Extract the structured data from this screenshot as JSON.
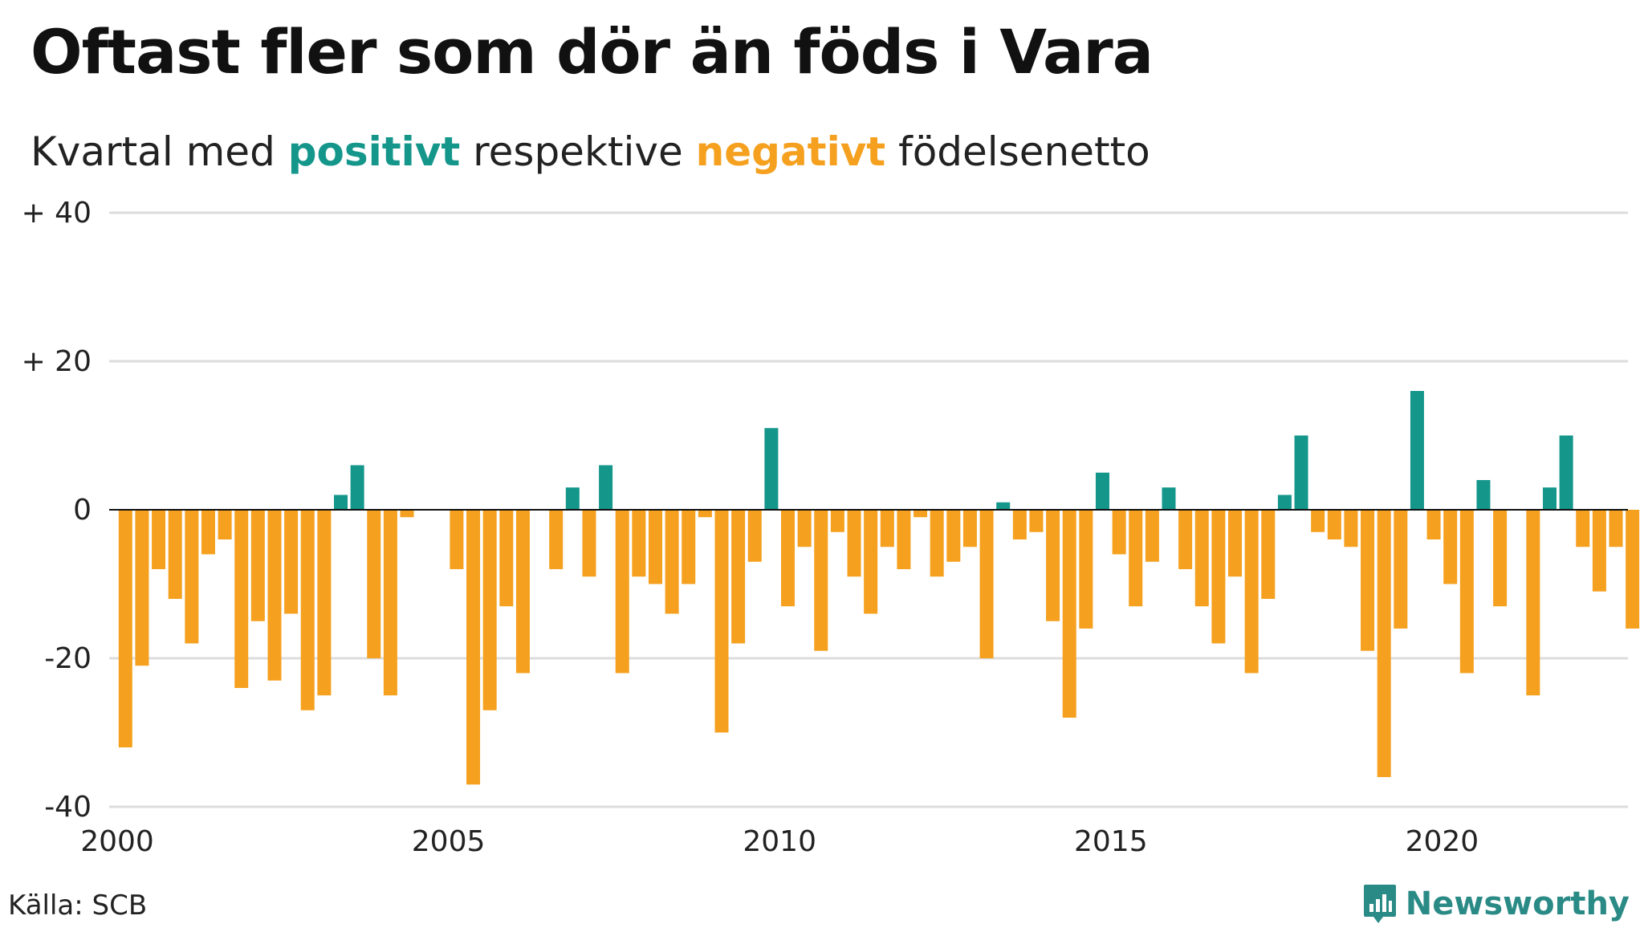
{
  "header": {
    "title": "Oftast fler som dör än föds i Vara",
    "subtitle_pre": "Kvartal med ",
    "subtitle_pos": "positivt",
    "subtitle_mid": " respektive ",
    "subtitle_neg": "negativt",
    "subtitle_post": " födelsenetto"
  },
  "footer": {
    "source": "Källa: SCB",
    "brand": "Newsworthy",
    "brand_icon": "newsworthy-logo-icon"
  },
  "colors": {
    "positive": "#14968b",
    "negative": "#f5a01e",
    "grid": "#dcdcdc",
    "zero_line": "#111111",
    "brand": "#2a8a86"
  },
  "chart_data": {
    "type": "bar",
    "x_start": "2000 Q1",
    "x_ticks": [
      2000,
      2005,
      2010,
      2015,
      2020
    ],
    "y_ticks": [
      {
        "value": 40,
        "label": "+ 40"
      },
      {
        "value": 20,
        "label": "+ 20"
      },
      {
        "value": 0,
        "label": "0"
      },
      {
        "value": -20,
        "label": "-20"
      },
      {
        "value": -40,
        "label": "-40"
      }
    ],
    "ylim": [
      -40,
      40
    ],
    "grid": true,
    "values": [
      -32,
      -21,
      -8,
      -12,
      -18,
      -6,
      -4,
      -24,
      -15,
      -23,
      -14,
      -27,
      -25,
      2,
      6,
      -20,
      -25,
      -1,
      0,
      0,
      -8,
      -37,
      -27,
      -13,
      -22,
      0,
      -8,
      3,
      -9,
      6,
      -22,
      -9,
      -10,
      -14,
      -10,
      -1,
      -30,
      -18,
      -7,
      11,
      -13,
      -5,
      -19,
      -3,
      -9,
      -14,
      -5,
      -8,
      -1,
      -9,
      -7,
      -5,
      -20,
      1,
      -4,
      -3,
      -15,
      -28,
      -16,
      5,
      -6,
      -13,
      -7,
      3,
      -8,
      -13,
      -18,
      -9,
      -22,
      -12,
      2,
      10,
      -3,
      -4,
      -5,
      -19,
      -36,
      -16,
      16,
      -4,
      -10,
      -22,
      4,
      -13,
      0,
      -25,
      3,
      10,
      -5,
      -11,
      -5,
      -16
    ]
  }
}
